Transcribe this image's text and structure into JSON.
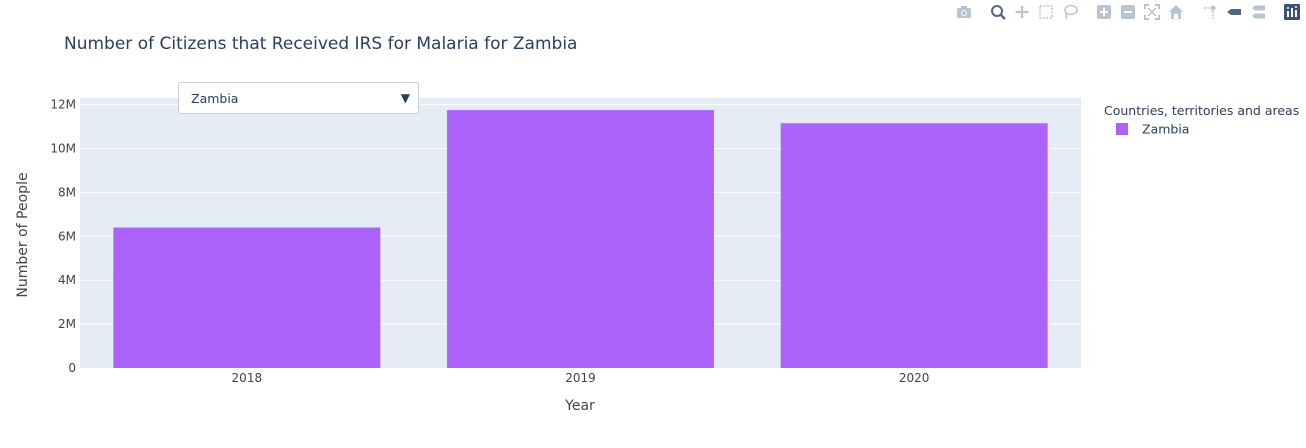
{
  "modebar": {
    "icons": [
      "camera-icon",
      "zoom-icon",
      "pan-icon",
      "box-select-icon",
      "lasso-select-icon",
      "zoom-in-icon",
      "zoom-out-icon",
      "autoscale-icon",
      "reset-axes-icon",
      "spike-lines-icon",
      "hover-closest-icon",
      "hover-compare-icon",
      "plotly-logo-icon"
    ]
  },
  "dropdown": {
    "selected": "Zambia",
    "arrow": "▼"
  },
  "chart_data": {
    "type": "bar",
    "title": "Number of Citizens that Received IRS for Malaria for Zambia",
    "xlabel": "Year",
    "ylabel": "Number of People",
    "categories": [
      "2018",
      "2019",
      "2020"
    ],
    "series": [
      {
        "name": "Zambia",
        "values": [
          6400000,
          11750000,
          11150000
        ],
        "color": "#ab63fa"
      }
    ],
    "ylim": [
      0,
      12300000
    ],
    "yticks": [
      0,
      2000000,
      4000000,
      6000000,
      8000000,
      10000000,
      12000000
    ],
    "ytick_labels": [
      "0",
      "2M",
      "4M",
      "6M",
      "8M",
      "10M",
      "12M"
    ],
    "legend_title": "Countries, territories and areas",
    "legend_position": "right",
    "grid": true,
    "plot_bgcolor": "#e5ecf6"
  }
}
